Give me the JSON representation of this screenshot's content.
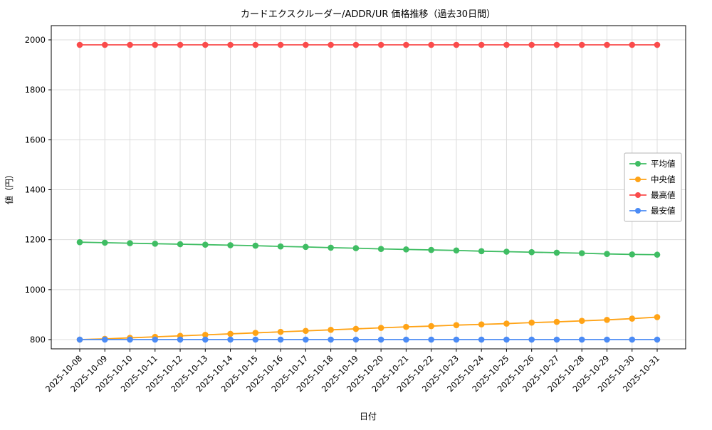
{
  "chart_data": {
    "type": "line",
    "title": "カードエクスクルーダー/ADDR/UR 価格推移（過去30日間）",
    "xlabel": "日付",
    "ylabel": "値（円）",
    "x": [
      "2025-10-08",
      "2025-10-09",
      "2025-10-10",
      "2025-10-11",
      "2025-10-12",
      "2025-10-13",
      "2025-10-14",
      "2025-10-15",
      "2025-10-16",
      "2025-10-17",
      "2025-10-18",
      "2025-10-19",
      "2025-10-20",
      "2025-10-21",
      "2025-10-22",
      "2025-10-23",
      "2025-10-24",
      "2025-10-25",
      "2025-10-26",
      "2025-10-27",
      "2025-10-28",
      "2025-10-29",
      "2025-10-30",
      "2025-10-31"
    ],
    "yticks": [
      800,
      1000,
      1200,
      1400,
      1600,
      1800,
      2000
    ],
    "ylim": [
      763,
      2057
    ],
    "grid": true,
    "legend_position": "center right",
    "colors": {
      "average": "#3fbd63",
      "median": "#ffa316",
      "max": "#fa4b4b",
      "min": "#4b8bf5",
      "grid": "#dcdcdc",
      "axis": "#000000"
    },
    "series": [
      {
        "name": "平均値",
        "color": "#3fbd63",
        "values": [
          1190,
          1188,
          1186,
          1184,
          1182,
          1180,
          1178,
          1176,
          1173,
          1171,
          1168,
          1166,
          1163,
          1161,
          1159,
          1157,
          1154,
          1152,
          1150,
          1148,
          1146,
          1143,
          1141,
          1140
        ]
      },
      {
        "name": "中央値",
        "color": "#ffa316",
        "values": [
          800,
          803,
          807,
          811,
          815,
          819,
          823,
          827,
          831,
          835,
          839,
          843,
          847,
          851,
          854,
          858,
          861,
          864,
          868,
          871,
          875,
          879,
          884,
          890
        ]
      },
      {
        "name": "最高値",
        "color": "#fa4b4b",
        "values": [
          1980,
          1980,
          1980,
          1980,
          1980,
          1980,
          1980,
          1980,
          1980,
          1980,
          1980,
          1980,
          1980,
          1980,
          1980,
          1980,
          1980,
          1980,
          1980,
          1980,
          1980,
          1980,
          1980,
          1980
        ]
      },
      {
        "name": "最安値",
        "color": "#4b8bf5",
        "values": [
          800,
          800,
          800,
          800,
          800,
          800,
          800,
          800,
          800,
          800,
          800,
          800,
          800,
          800,
          800,
          800,
          800,
          800,
          800,
          800,
          800,
          800,
          800,
          800
        ]
      }
    ]
  }
}
